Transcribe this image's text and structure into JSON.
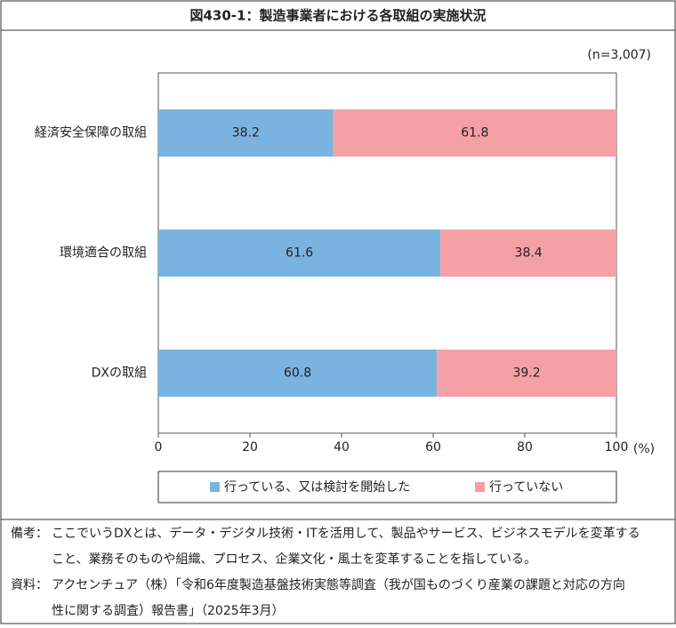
{
  "chart_data": {
    "type": "stacked-barh",
    "title": "図430-1：製造事業者における各取組の実施状況",
    "annotation": "(n=3,007)",
    "xlabel": "(%)",
    "categories": [
      "経済安全保障の取組",
      "環境適合の取組",
      "DXの取組"
    ],
    "series": [
      {
        "name": "行っている、又は検討を開始した",
        "color": "#7ab3e0",
        "values": [
          38.2,
          61.6,
          60.8
        ]
      },
      {
        "name": "行っていない",
        "color": "#f4a0a5",
        "values": [
          61.8,
          38.4,
          39.2
        ]
      }
    ],
    "xlim": [
      0,
      100
    ],
    "xticks": [
      0,
      20,
      40,
      60,
      80,
      100
    ],
    "legend": "bottom"
  },
  "notes": [
    {
      "label": "備考：",
      "lines": [
        "ここでいうDXとは、データ・デジタル技術・ITを活用して、製品やサービス、ビジネスモデルを変革する",
        "こと、業務そのものや組織、プロセス、企業文化・風土を変革することを指している。"
      ]
    },
    {
      "label": "資料：",
      "lines": [
        "アクセンチュア（株）「令和6年度製造基盤技術実態等調査（我が国ものづくり産業の課題と対応の方向",
        "性に関する調査）報告書」（2025年3月）"
      ]
    }
  ]
}
